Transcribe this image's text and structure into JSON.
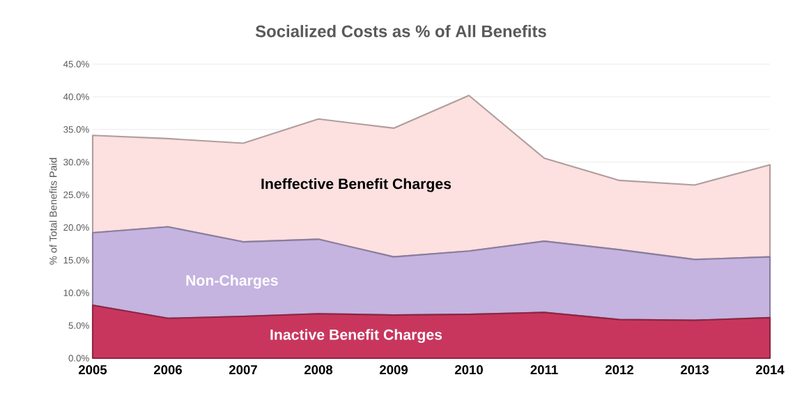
{
  "chart_data": {
    "type": "area",
    "stacked": true,
    "title": "Socialized Costs as % of All Benefits",
    "ylabel": "% of Total Benefits Paid",
    "categories": [
      "2005",
      "2006",
      "2007",
      "2008",
      "2009",
      "2010",
      "2011",
      "2012",
      "2013",
      "2014"
    ],
    "series": [
      {
        "name": "Inactive Benefit Charges",
        "color": "#c8365e",
        "values": [
          8.1,
          6.1,
          6.4,
          6.8,
          6.6,
          6.7,
          7.0,
          5.9,
          5.8,
          6.2
        ]
      },
      {
        "name": "Non-Charges",
        "color": "#c5b3e0",
        "values": [
          11.1,
          14.0,
          11.4,
          11.4,
          8.9,
          9.7,
          10.9,
          10.7,
          9.3,
          9.3
        ]
      },
      {
        "name": "Ineffective Benefit Charges",
        "color": "#fde0e0",
        "values": [
          14.9,
          13.5,
          15.1,
          18.4,
          19.7,
          23.8,
          12.7,
          10.6,
          11.4,
          14.1
        ]
      }
    ],
    "ylim": [
      0,
      45
    ],
    "yticks": [
      {
        "value": 0,
        "label": "0.0%"
      },
      {
        "value": 5,
        "label": "5.0%"
      },
      {
        "value": 10,
        "label": "10.0%"
      },
      {
        "value": 15,
        "label": "15.0%"
      },
      {
        "value": 20,
        "label": "20.0%"
      },
      {
        "value": 25,
        "label": "25.0%"
      },
      {
        "value": 30,
        "label": "30.0%"
      },
      {
        "value": 35,
        "label": "35.0%"
      },
      {
        "value": 40,
        "label": "40.0%"
      },
      {
        "value": 45,
        "label": "45.0%"
      }
    ],
    "grid": "y",
    "legend": false
  }
}
